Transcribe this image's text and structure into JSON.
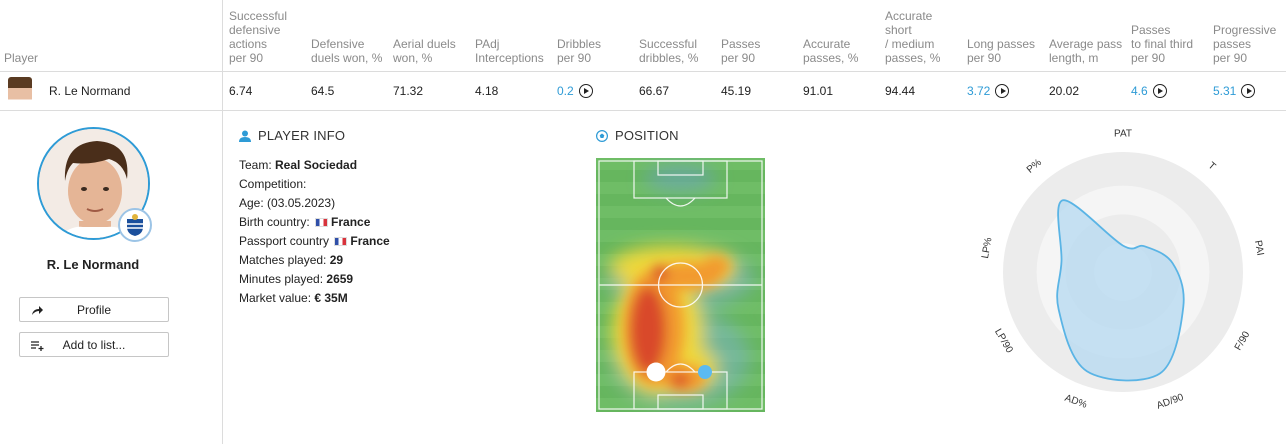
{
  "table": {
    "player_header": "Player",
    "columns": [
      {
        "label": "Successful\ndefensive\nactions\nper 90",
        "value": "6.74",
        "link": false
      },
      {
        "label": "Defensive\nduels won, %",
        "value": "64.5",
        "link": false
      },
      {
        "label": "Aerial duels\nwon, %",
        "value": "71.32",
        "link": false
      },
      {
        "label": "PAdj\nInterceptions",
        "value": "4.18",
        "link": false
      },
      {
        "label": "Dribbles\nper 90",
        "value": "0.2",
        "link": true
      },
      {
        "label": "Successful\ndribbles, %",
        "value": "66.67",
        "link": false
      },
      {
        "label": "Passes\nper 90",
        "value": "45.19",
        "link": false
      },
      {
        "label": "Accurate\npasses, %",
        "value": "91.01",
        "link": false
      },
      {
        "label": "Accurate\nshort\n/ medium\npasses, %",
        "value": "94.44",
        "link": false
      },
      {
        "label": "Long passes\nper 90",
        "value": "3.72",
        "link": true
      },
      {
        "label": "Average pass\nlength, m",
        "value": "20.02",
        "link": false
      },
      {
        "label": "Passes\nto final third\nper 90",
        "value": "4.6",
        "link": true
      },
      {
        "label": "Progressive\npasses\nper 90",
        "value": "5.31",
        "link": true
      }
    ],
    "row_player": "R. Le Normand"
  },
  "profile": {
    "name": "R. Le Normand",
    "profile_button": "Profile",
    "add_button": "Add to list..."
  },
  "player_info": {
    "title": "PLAYER INFO",
    "team_label": "Team: ",
    "team": "Real Sociedad",
    "competition_label": "Competition:",
    "age_label": "Age: (03.05.2023)",
    "birth_label": "Birth country: ",
    "birth_country": "France",
    "passport_label": "Passport country ",
    "passport_country": "France",
    "matches_label": "Matches played: ",
    "matches": "29",
    "minutes_label": "Minutes played: ",
    "minutes": "2659",
    "market_label": "Market value: ",
    "market": "€ 35M"
  },
  "position": {
    "title": "POSITION"
  },
  "radar": {
    "labels": [
      "PAT",
      "T",
      "PAI",
      "F/90",
      "AD/90",
      "AD%",
      "LP/90",
      "LP%",
      "P%"
    ],
    "values": [
      0.22,
      0.28,
      0.42,
      0.58,
      0.9,
      0.88,
      0.62,
      0.52,
      0.78
    ],
    "fill_color": "#bcdcf1",
    "stroke_color": "#5ab4e5"
  },
  "colors": {
    "accent": "#2e9bd6",
    "pitch_green": "#6dbb64"
  }
}
